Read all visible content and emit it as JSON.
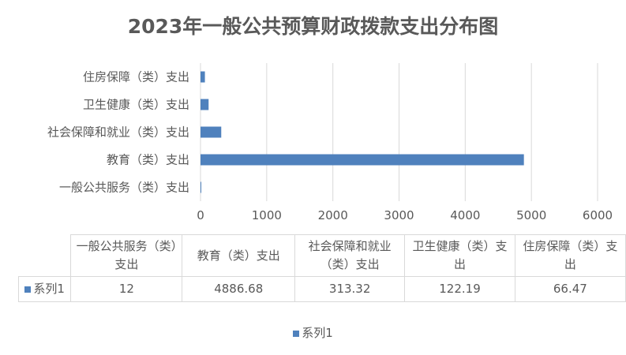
{
  "chart_data": {
    "type": "bar",
    "orientation": "horizontal",
    "title": "2023年一般公共预算财政拨款支出分布图",
    "categories": [
      "一般公共服务（类）支出",
      "教育（类）支出",
      "社会保障和就业（类）支出",
      "卫生健康（类）支出",
      "住房保障（类）支出"
    ],
    "series": [
      {
        "name": "系列1",
        "values": [
          12,
          4886.68,
          313.32,
          122.19,
          66.47
        ],
        "color": "#4f81bd"
      }
    ],
    "xlim": [
      0,
      6000
    ],
    "xticks": [
      "0",
      "1000",
      "2000",
      "3000",
      "4000",
      "5000",
      "6000"
    ],
    "grid": true,
    "data_table": true,
    "table_values": [
      "12",
      "4886.68",
      "313.32",
      "122.19",
      "66.47"
    ],
    "legend_position": "bottom"
  }
}
